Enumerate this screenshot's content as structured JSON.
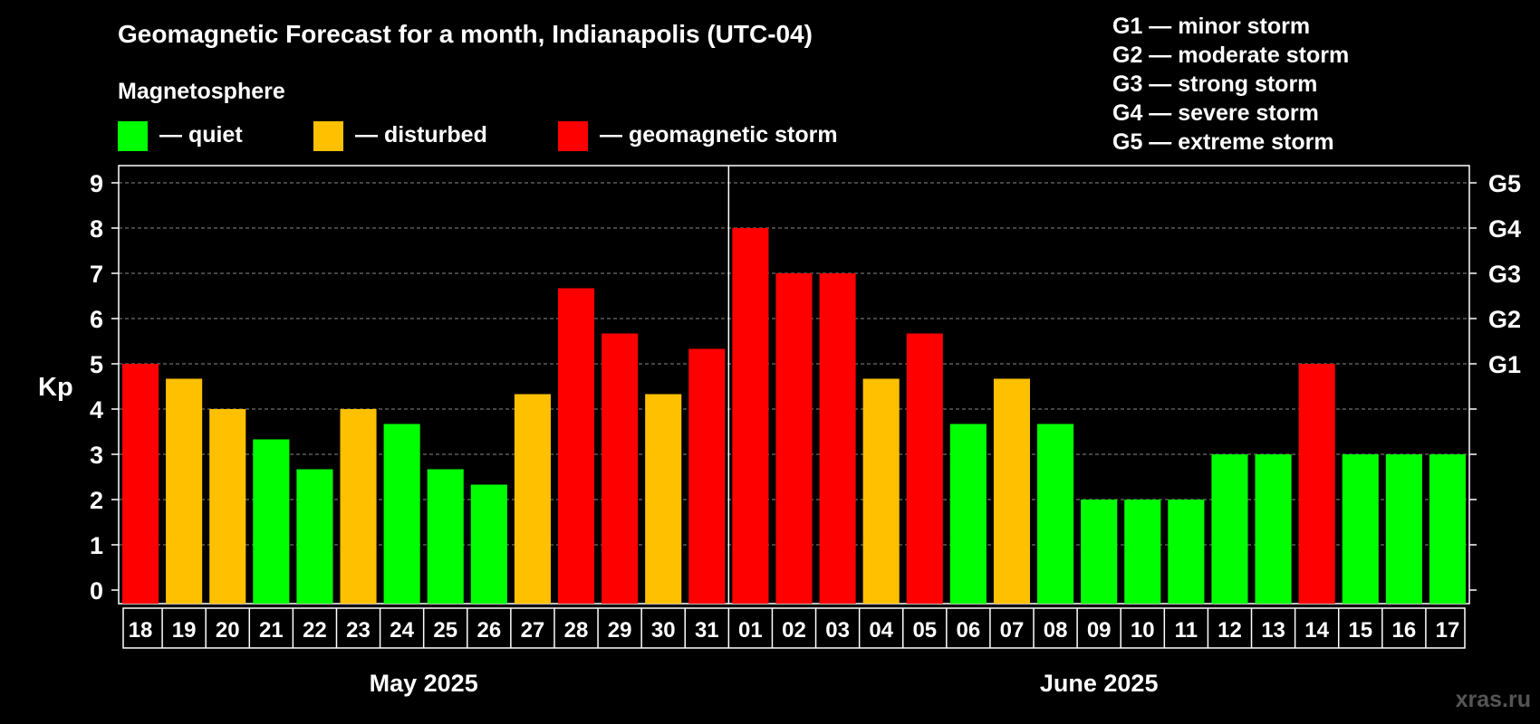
{
  "title": "Geomagnetic Forecast for a month, Indianapolis (UTC-04)",
  "legend": {
    "heading": "Magnetosphere",
    "items": [
      {
        "label": "— quiet",
        "color": "#00ff00"
      },
      {
        "label": "— disturbed",
        "color": "#ffc000"
      },
      {
        "label": "— geomagnetic storm",
        "color": "#ff0000"
      }
    ]
  },
  "g_legend": [
    "G1 — minor storm",
    "G2 — moderate storm",
    "G3 — strong storm",
    "G4 — severe storm",
    "G5 — extreme storm"
  ],
  "watermark": "xras.ru",
  "chart_data": {
    "type": "bar",
    "ylabel": "Kp",
    "ylim": [
      0,
      9
    ],
    "yticks": [
      "0",
      "1",
      "2",
      "3",
      "4",
      "5",
      "6",
      "7",
      "8",
      "9"
    ],
    "right_ticks": [
      {
        "value": 5,
        "label": "G1"
      },
      {
        "value": 6,
        "label": "G2"
      },
      {
        "value": 7,
        "label": "G3"
      },
      {
        "value": 8,
        "label": "G4"
      },
      {
        "value": 9,
        "label": "G5"
      }
    ],
    "grid": true,
    "categories": [
      "18",
      "19",
      "20",
      "21",
      "22",
      "23",
      "24",
      "25",
      "26",
      "27",
      "28",
      "29",
      "30",
      "31",
      "01",
      "02",
      "03",
      "04",
      "05",
      "06",
      "07",
      "08",
      "09",
      "10",
      "11",
      "12",
      "13",
      "14",
      "15",
      "16",
      "17"
    ],
    "values": [
      5,
      4.67,
      4,
      3.33,
      2.67,
      4,
      3.67,
      2.67,
      2.33,
      4.33,
      6.67,
      5.67,
      4.33,
      5.33,
      8,
      7,
      7,
      4.67,
      5.67,
      3.67,
      4.67,
      3.67,
      2,
      2,
      2,
      3,
      3,
      5,
      3,
      3,
      3
    ],
    "level": [
      "storm",
      "disturbed",
      "disturbed",
      "quiet",
      "quiet",
      "disturbed",
      "quiet",
      "quiet",
      "quiet",
      "disturbed",
      "storm",
      "storm",
      "disturbed",
      "storm",
      "storm",
      "storm",
      "storm",
      "disturbed",
      "storm",
      "quiet",
      "disturbed",
      "quiet",
      "quiet",
      "quiet",
      "quiet",
      "quiet",
      "quiet",
      "storm",
      "quiet",
      "quiet",
      "quiet"
    ],
    "level_colors": {
      "quiet": "#00ff00",
      "disturbed": "#ffc000",
      "storm": "#ff0000"
    },
    "months": [
      {
        "label": "May 2025",
        "days": 14
      },
      {
        "label": "June 2025",
        "days": 17
      }
    ]
  }
}
